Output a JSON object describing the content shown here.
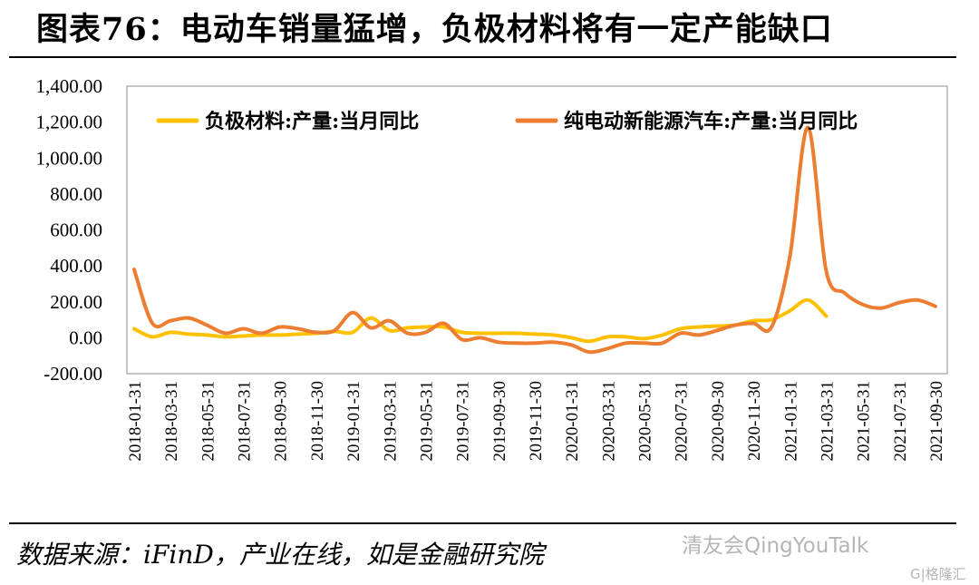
{
  "title": "图表76：电动车销量猛增，负极材料将有一定产能缺口",
  "source": "数据来源：iFinD，产业在线，如是金融研究院",
  "watermark": "清友会QingYouTalk",
  "watermark_small": "G|格隆汇",
  "colors": {
    "anode": "#FFC000",
    "bev": "#ED7D31"
  },
  "chart_data": {
    "type": "line",
    "ylim": [
      -200,
      1400
    ],
    "yticks": [
      "1,400.00",
      "1,200.00",
      "1,000.00",
      "800.00",
      "600.00",
      "400.00",
      "200.00",
      "0.00",
      "-200.00"
    ],
    "ytick_values": [
      1400,
      1200,
      1000,
      800,
      600,
      400,
      200,
      0,
      -200
    ],
    "xtick_labels": [
      "2018-01-31",
      "2018-03-31",
      "2018-05-31",
      "2018-07-31",
      "2018-09-30",
      "2018-11-30",
      "2019-01-31",
      "2019-03-31",
      "2019-05-31",
      "2019-07-31",
      "2019-09-30",
      "2019-11-30",
      "2020-01-31",
      "2020-03-31",
      "2020-05-31",
      "2020-07-31",
      "2020-09-30",
      "2020-11-30",
      "2021-01-31",
      "2021-03-31",
      "2021-05-31",
      "2021-07-31",
      "2021-09-30"
    ],
    "x": [
      "2018-01",
      "2018-02",
      "2018-03",
      "2018-04",
      "2018-05",
      "2018-06",
      "2018-07",
      "2018-08",
      "2018-09",
      "2018-10",
      "2018-11",
      "2018-12",
      "2019-01",
      "2019-02",
      "2019-03",
      "2019-04",
      "2019-05",
      "2019-06",
      "2019-07",
      "2019-08",
      "2019-09",
      "2019-10",
      "2019-11",
      "2019-12",
      "2020-01",
      "2020-02",
      "2020-03",
      "2020-04",
      "2020-05",
      "2020-06",
      "2020-07",
      "2020-08",
      "2020-09",
      "2020-10",
      "2020-11",
      "2020-12",
      "2021-01",
      "2021-02",
      "2021-03",
      "2021-04",
      "2021-05",
      "2021-06",
      "2021-07",
      "2021-08",
      "2021-09"
    ],
    "series": [
      {
        "name": "负极材料:产量:当月同比",
        "values": [
          50,
          5,
          30,
          20,
          15,
          5,
          10,
          15,
          15,
          20,
          25,
          35,
          30,
          110,
          40,
          55,
          60,
          60,
          30,
          25,
          25,
          25,
          20,
          15,
          0,
          -20,
          5,
          5,
          -5,
          15,
          50,
          60,
          65,
          70,
          95,
          100,
          150,
          210,
          120,
          null,
          null,
          null,
          null,
          null,
          null
        ]
      },
      {
        "name": "纯电动新能源汽车:产量:当月同比",
        "values": [
          380,
          80,
          95,
          110,
          70,
          25,
          50,
          25,
          60,
          50,
          30,
          40,
          140,
          55,
          95,
          25,
          30,
          80,
          -10,
          0,
          -25,
          -30,
          -30,
          -25,
          -40,
          -80,
          -60,
          -30,
          -30,
          -30,
          25,
          15,
          40,
          70,
          80,
          60,
          450,
          1170,
          370,
          250,
          185,
          165,
          195,
          210,
          175
        ]
      }
    ]
  }
}
